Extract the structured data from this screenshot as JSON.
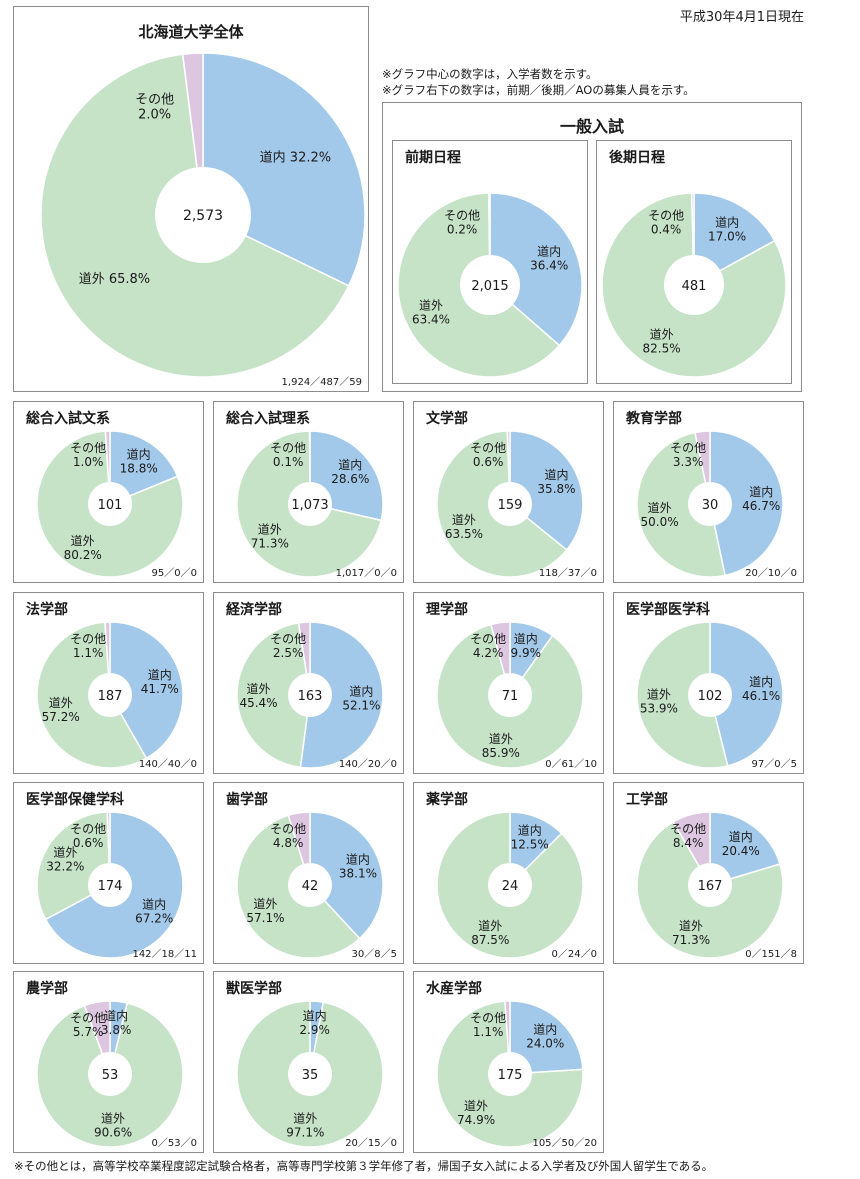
{
  "header": {
    "date": "平成30年4月1日現在",
    "note1": "※グラフ中心の数字は，入学者数を示す。",
    "note2": "※グラフ右下の数字は，前期／後期／AOの募集人員を示す。",
    "general_title": "一般入試",
    "footnote": "※その他とは，高等学校卒業程度認定試験合格者，高等専門学校第３学年修了者，帰国子女入試による入学者及び外国人留学生である。"
  },
  "colors": {
    "inside": "#a3c9ea",
    "outside": "#c6e3c8",
    "other": "#dcc6e0"
  },
  "chart_data": [
    {
      "type": "pie",
      "id": "overall",
      "title": "北海道大学全体",
      "center": "2,573",
      "footer": "1,924／487／59",
      "labels": [
        "道内",
        "道外",
        "その他"
      ],
      "values": [
        32.2,
        65.8,
        2.0
      ],
      "display": [
        "道内 32.2%",
        "道外 65.8%",
        "その他\n2.0%"
      ]
    },
    {
      "type": "pie",
      "id": "zenki",
      "title": "前期日程",
      "center": "2,015",
      "footer": "",
      "labels": [
        "道内",
        "道外",
        "その他"
      ],
      "values": [
        36.4,
        63.4,
        0.2
      ],
      "display": [
        "道内\n36.4%",
        "道外\n63.4%",
        "その他\n0.2%"
      ]
    },
    {
      "type": "pie",
      "id": "kouki",
      "title": "後期日程",
      "center": "481",
      "footer": "",
      "labels": [
        "道内",
        "道外",
        "その他"
      ],
      "values": [
        17.0,
        82.5,
        0.4
      ],
      "display": [
        "道内\n17.0%",
        "道外\n82.5%",
        "その他\n0.4%"
      ]
    },
    {
      "type": "pie",
      "id": "sogo-bun",
      "title": "総合入試文系",
      "center": "101",
      "footer": "95／0／0",
      "labels": [
        "道内",
        "道外",
        "その他"
      ],
      "values": [
        18.8,
        80.2,
        1.0
      ],
      "display": [
        "道内\n18.8%",
        "道外\n80.2%",
        "その他\n1.0%"
      ]
    },
    {
      "type": "pie",
      "id": "sogo-ri",
      "title": "総合入試理系",
      "center": "1,073",
      "footer": "1,017／0／0",
      "labels": [
        "道内",
        "道外",
        "その他"
      ],
      "values": [
        28.6,
        71.3,
        0.1
      ],
      "display": [
        "道内\n28.6%",
        "道外\n71.3%",
        "その他\n0.1%"
      ]
    },
    {
      "type": "pie",
      "id": "bungaku",
      "title": "文学部",
      "center": "159",
      "footer": "118／37／0",
      "labels": [
        "道内",
        "道外",
        "その他"
      ],
      "values": [
        35.8,
        63.5,
        0.6
      ],
      "display": [
        "道内\n35.8%",
        "道外\n63.5%",
        "その他\n0.6%"
      ]
    },
    {
      "type": "pie",
      "id": "kyoiku",
      "title": "教育学部",
      "center": "30",
      "footer": "20／10／0",
      "labels": [
        "道内",
        "道外",
        "その他"
      ],
      "values": [
        46.7,
        50.0,
        3.3
      ],
      "display": [
        "道内\n46.7%",
        "道外\n50.0%",
        "その他\n3.3%"
      ]
    },
    {
      "type": "pie",
      "id": "hogaku",
      "title": "法学部",
      "center": "187",
      "footer": "140／40／0",
      "labels": [
        "道内",
        "道外",
        "その他"
      ],
      "values": [
        41.7,
        57.2,
        1.1
      ],
      "display": [
        "道内\n41.7%",
        "道外\n57.2%",
        "その他\n1.1%"
      ]
    },
    {
      "type": "pie",
      "id": "keizai",
      "title": "経済学部",
      "center": "163",
      "footer": "140／20／0",
      "labels": [
        "道内",
        "道外",
        "その他"
      ],
      "values": [
        52.1,
        45.4,
        2.5
      ],
      "display": [
        "道内\n52.1%",
        "道外\n45.4%",
        "その他\n2.5%"
      ]
    },
    {
      "type": "pie",
      "id": "rigaku",
      "title": "理学部",
      "center": "71",
      "footer": "0／61／10",
      "labels": [
        "道内",
        "道外",
        "その他"
      ],
      "values": [
        9.9,
        85.9,
        4.2
      ],
      "display": [
        "道内\n9.9%",
        "道外\n85.9%",
        "その他\n4.2%"
      ]
    },
    {
      "type": "pie",
      "id": "igaku",
      "title": "医学部医学科",
      "center": "102",
      "footer": "97／0／5",
      "labels": [
        "道内",
        "道外"
      ],
      "values": [
        46.1,
        53.9
      ],
      "display": [
        "道内\n46.1%",
        "道外\n53.9%"
      ]
    },
    {
      "type": "pie",
      "id": "hoken",
      "title": "医学部保健学科",
      "center": "174",
      "footer": "142／18／11",
      "labels": [
        "道内",
        "道外",
        "その他"
      ],
      "values": [
        67.2,
        32.2,
        0.6
      ],
      "display": [
        "道内\n67.2%",
        "道外\n32.2%",
        "その他\n0.6%"
      ]
    },
    {
      "type": "pie",
      "id": "shigaku",
      "title": "歯学部",
      "center": "42",
      "footer": "30／8／5",
      "labels": [
        "道内",
        "道外",
        "その他"
      ],
      "values": [
        38.1,
        57.1,
        4.8
      ],
      "display": [
        "道内\n38.1%",
        "道外\n57.1%",
        "その他\n4.8%"
      ]
    },
    {
      "type": "pie",
      "id": "yakugaku",
      "title": "薬学部",
      "center": "24",
      "footer": "0／24／0",
      "labels": [
        "道内",
        "道外"
      ],
      "values": [
        12.5,
        87.5
      ],
      "display": [
        "道内\n12.5%",
        "道外\n87.5%"
      ]
    },
    {
      "type": "pie",
      "id": "kogaku",
      "title": "工学部",
      "center": "167",
      "footer": "0／151／8",
      "labels": [
        "道内",
        "道外",
        "その他"
      ],
      "values": [
        20.4,
        71.3,
        8.4
      ],
      "display": [
        "道内\n20.4%",
        "道外\n71.3%",
        "その他\n8.4%"
      ]
    },
    {
      "type": "pie",
      "id": "nogaku",
      "title": "農学部",
      "center": "53",
      "footer": "0／53／0",
      "labels": [
        "道内",
        "道外",
        "その他"
      ],
      "values": [
        3.8,
        90.6,
        5.7
      ],
      "display": [
        "道内\n3.8%",
        "道外\n90.6%",
        "その他\n5.7%"
      ]
    },
    {
      "type": "pie",
      "id": "juigaku",
      "title": "獣医学部",
      "center": "35",
      "footer": "20／15／0",
      "labels": [
        "道内",
        "道外"
      ],
      "values": [
        2.9,
        97.1
      ],
      "display": [
        "道内\n2.9%",
        "道外\n97.1%"
      ]
    },
    {
      "type": "pie",
      "id": "suisan",
      "title": "水産学部",
      "center": "175",
      "footer": "105／50／20",
      "labels": [
        "道内",
        "道外",
        "その他"
      ],
      "values": [
        24.0,
        74.9,
        1.1
      ],
      "display": [
        "道内\n24.0%",
        "道外\n74.9%",
        "その他\n1.1%"
      ]
    }
  ]
}
